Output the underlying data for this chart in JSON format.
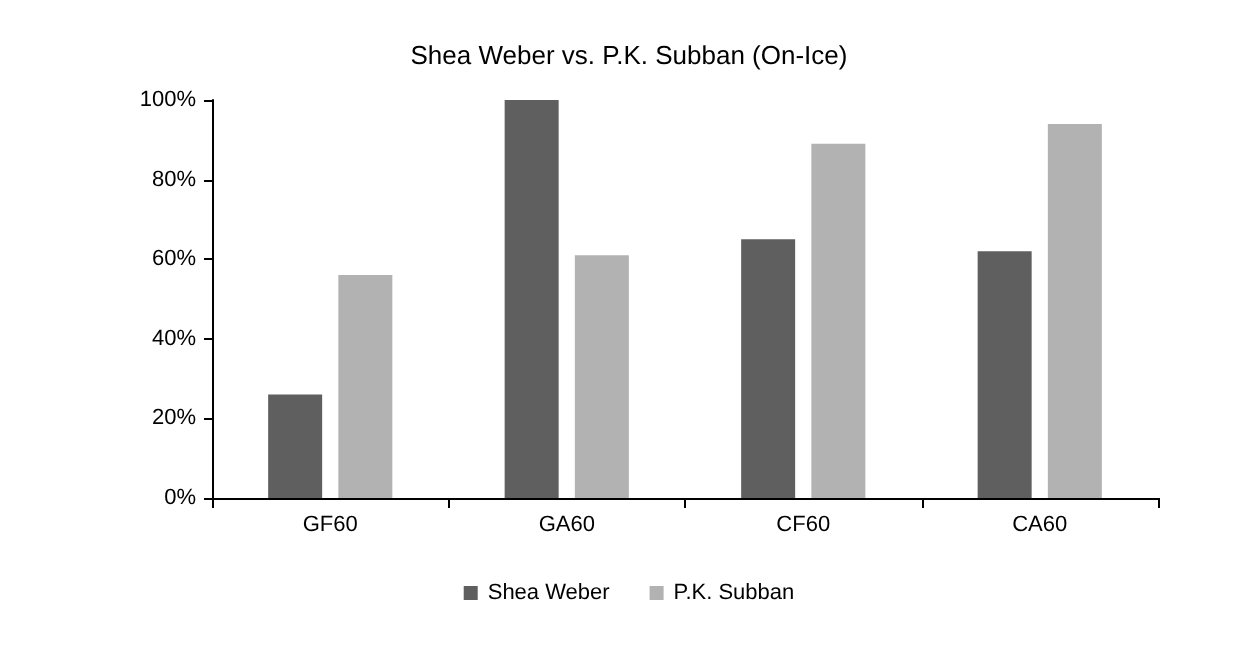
{
  "chart_data": {
    "type": "bar",
    "title": "Shea Weber vs. P.K. Subban (On-Ice)",
    "categories": [
      "GF60",
      "GA60",
      "CF60",
      "CA60"
    ],
    "series": [
      {
        "name": "Shea Weber",
        "color": "#5f5f5f",
        "values": [
          26,
          100,
          65,
          62
        ]
      },
      {
        "name": "P.K. Subban",
        "color": "#b2b2b2",
        "values": [
          56,
          61,
          89,
          94
        ]
      }
    ],
    "ylim": [
      0,
      100
    ],
    "yticks": [
      {
        "value": 0,
        "label": "0%"
      },
      {
        "value": 20,
        "label": "20%"
      },
      {
        "value": 40,
        "label": "40%"
      },
      {
        "value": 60,
        "label": "60%"
      },
      {
        "value": 80,
        "label": "80%"
      },
      {
        "value": 100,
        "label": "100%"
      }
    ],
    "grid": false,
    "legend": "bottom"
  }
}
